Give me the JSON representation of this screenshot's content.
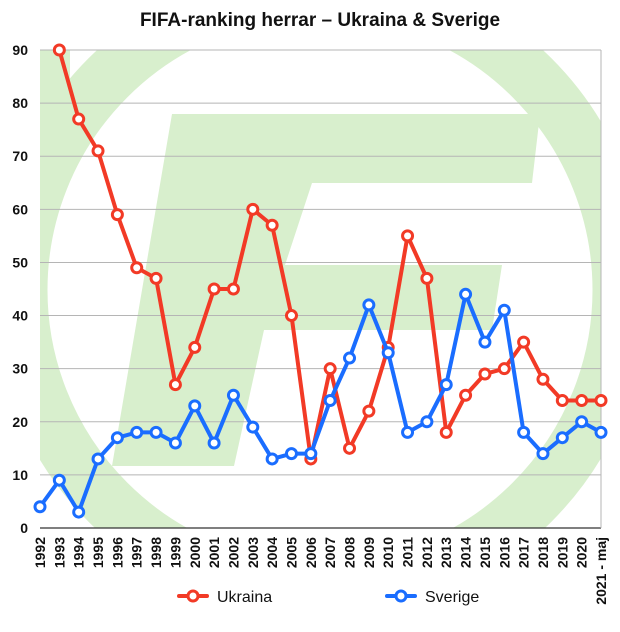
{
  "chart_data": {
    "type": "line",
    "title": "FIFA-ranking herrar – Ukraina & Sverige",
    "xlabel": "",
    "ylabel": "",
    "categories": [
      "1992",
      "1993",
      "1994",
      "1995",
      "1996",
      "1997",
      "1998",
      "1999",
      "2000",
      "2001",
      "2002",
      "2003",
      "2004",
      "2005",
      "2006",
      "2007",
      "2008",
      "2009",
      "2010",
      "2011",
      "2012",
      "2013",
      "2014",
      "2015",
      "2016",
      "2017",
      "2018",
      "2019",
      "2020",
      "2021 - maj"
    ],
    "ylim": [
      0,
      90
    ],
    "yticks": [
      "0",
      "10",
      "20",
      "30",
      "40",
      "50",
      "60",
      "70",
      "80",
      "90"
    ],
    "grid": true,
    "legend_position": "bottom",
    "series": [
      {
        "name": "Ukraina",
        "color": "#f23a26",
        "values": [
          null,
          90,
          77,
          71,
          59,
          49,
          47,
          27,
          34,
          45,
          45,
          60,
          57,
          40,
          13,
          30,
          15,
          22,
          34,
          55,
          47,
          18,
          25,
          29,
          30,
          35,
          28,
          24,
          24,
          24
        ]
      },
      {
        "name": "Sverige",
        "color": "#1a6dff",
        "values": [
          4,
          9,
          3,
          13,
          17,
          18,
          18,
          16,
          23,
          16,
          25,
          19,
          13,
          14,
          14,
          24,
          32,
          42,
          33,
          18,
          20,
          27,
          44,
          35,
          41,
          18,
          14,
          17,
          20,
          18
        ]
      }
    ],
    "background_color": "#d8efcd"
  }
}
